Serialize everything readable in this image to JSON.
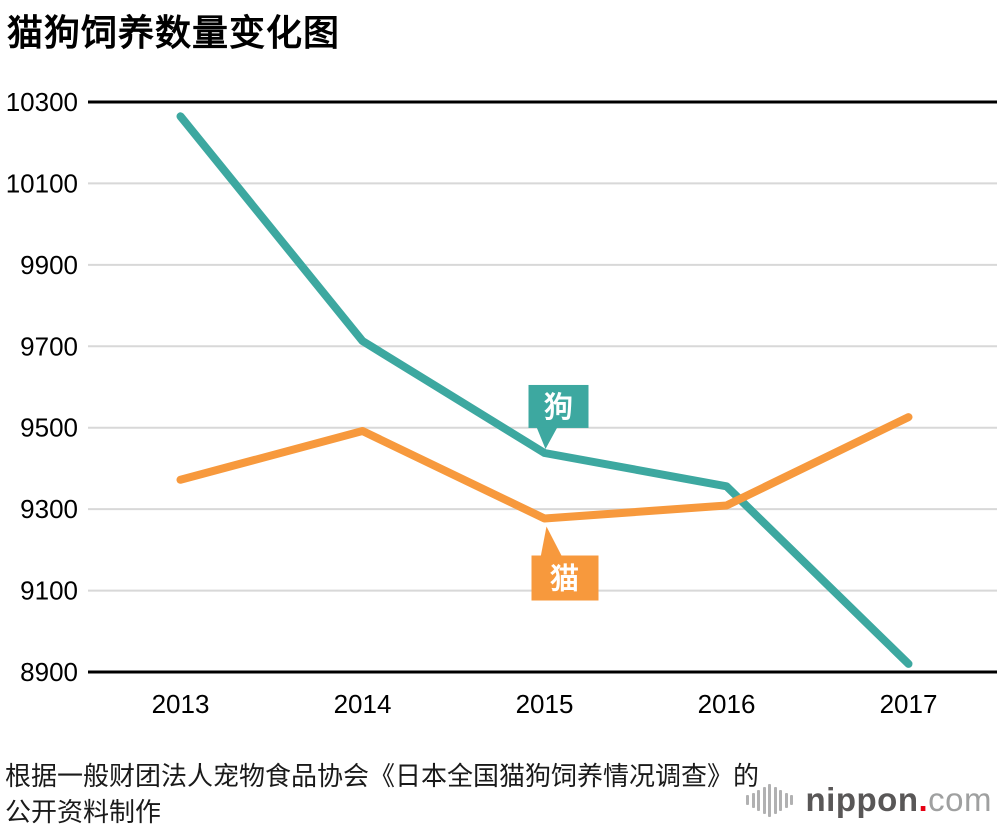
{
  "title": "猫狗饲养数量变化图",
  "source_note": {
    "line1": "根据一般财团法人宠物食品协会《日本全国猫狗饲养情况调查》的",
    "line2": "公开资料制作"
  },
  "logo": {
    "name": "nippon.com",
    "text_bold": "nippon",
    "dot": ".",
    "text_light": "com"
  },
  "colors": {
    "dog": "#3da8a0",
    "cat": "#f7993d",
    "grid": "#d8d8d8",
    "axis_edge": "#000000",
    "tick_text": "#000000",
    "annotation_text": "#ffffff"
  },
  "chart_data": {
    "type": "line",
    "title": "猫狗饲养数量变化图",
    "x": [
      2013,
      2014,
      2015,
      2016,
      2017
    ],
    "series": [
      {
        "name": "狗",
        "color_key": "dog",
        "values": [
          10265,
          9713,
          9438,
          9356,
          8920
        ]
      },
      {
        "name": "猫",
        "color_key": "cat",
        "values": [
          9372,
          9492,
          9277,
          9309,
          9526
        ]
      }
    ],
    "ylim": [
      8900,
      10300
    ],
    "yticks": [
      10300,
      10100,
      9900,
      9700,
      9500,
      9300,
      9100,
      8900
    ],
    "grid": true,
    "legend_position": "inline-callouts",
    "annotations": [
      {
        "text": "狗",
        "series": "狗",
        "x": 2015,
        "position": "above"
      },
      {
        "text": "猫",
        "series": "猫",
        "x": 2015,
        "position": "below"
      }
    ]
  }
}
